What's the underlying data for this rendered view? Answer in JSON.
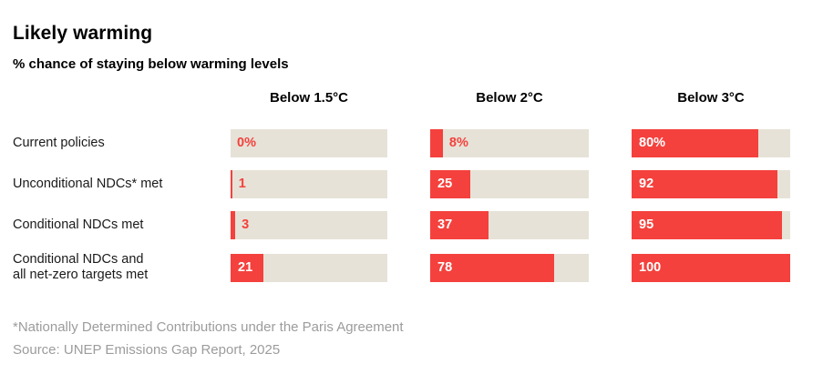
{
  "header": {
    "title": "Likely warming",
    "subtitle": "% chance of staying below warming levels"
  },
  "colors": {
    "bar_fill": "#f4413d",
    "bar_track": "#e6e2d7",
    "value_inside_text": "#ffffff",
    "value_outside_text": "#f4413d",
    "footnote_text": "#9c9c9c",
    "heading_text": "#000000"
  },
  "chart_data": {
    "type": "bar",
    "orientation": "horizontal",
    "title": "Likely warming",
    "subtitle": "% chance of staying below warming levels",
    "xlabel": "",
    "ylabel": "",
    "unit": "%",
    "value_range": [
      0,
      100
    ],
    "grid": false,
    "legend": false,
    "columns": [
      "Below 1.5°C",
      "Below 2°C",
      "Below 3°C"
    ],
    "rows": [
      {
        "label": "Current policies",
        "values": [
          0,
          8,
          80
        ],
        "display": [
          "0%",
          "8%",
          "80%"
        ]
      },
      {
        "label": "Unconditional NDCs* met",
        "values": [
          1,
          25,
          92
        ],
        "display": [
          "1",
          "25",
          "92"
        ]
      },
      {
        "label": "Conditional NDCs met",
        "values": [
          3,
          37,
          95
        ],
        "display": [
          "3",
          "37",
          "95"
        ]
      },
      {
        "label": "Conditional NDCs and\nall net-zero targets met",
        "values": [
          21,
          78,
          100
        ],
        "display": [
          "21",
          "78",
          "100"
        ]
      }
    ]
  },
  "footer": {
    "footnote": "*Nationally Determined Contributions under the Paris Agreement",
    "source": "Source: UNEP Emissions Gap Report, 2025"
  }
}
